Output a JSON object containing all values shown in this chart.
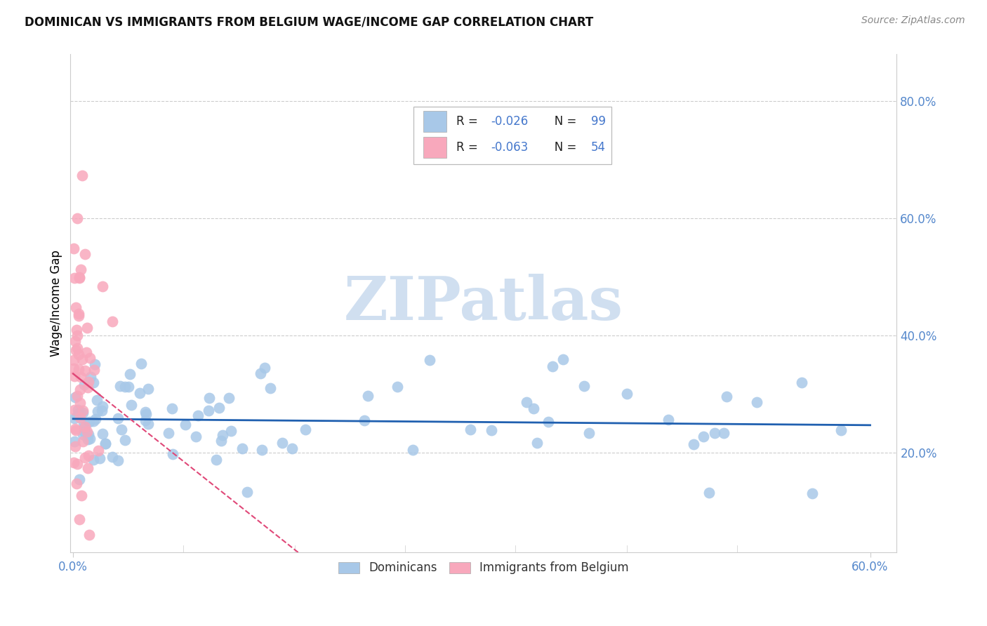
{
  "title": "DOMINICAN VS IMMIGRANTS FROM BELGIUM WAGE/INCOME GAP CORRELATION CHART",
  "source": "Source: ZipAtlas.com",
  "ylabel": "Wage/Income Gap",
  "right_yticks": [
    0.2,
    0.4,
    0.6,
    0.8
  ],
  "right_yticklabels": [
    "20.0%",
    "40.0%",
    "60.0%",
    "80.0%"
  ],
  "xlim": [
    -0.002,
    0.62
  ],
  "ylim": [
    0.03,
    0.88
  ],
  "xtick_positions": [
    0.0,
    0.6
  ],
  "xtick_labels": [
    "0.0%",
    "60.0%"
  ],
  "legend_blue_label": "Dominicans",
  "legend_pink_label": "Immigrants from Belgium",
  "blue_dot_color": "#a8c8e8",
  "pink_dot_color": "#f8a8bc",
  "blue_line_color": "#2060b0",
  "pink_line_color": "#e04878",
  "watermark_text": "ZIPatlas",
  "watermark_color": "#d0dff0",
  "grid_color": "#cccccc",
  "tick_color": "#5588cc",
  "title_color": "#111111",
  "source_color": "#888888",
  "legend_r_color": "#111111",
  "legend_val_color": "#4477cc",
  "blue_intercept": 0.258,
  "blue_slope": -0.018,
  "pink_intercept": 0.335,
  "pink_slope": -1.8,
  "pink_line_end_solid": 0.02,
  "pink_line_end_dashed": 0.6
}
